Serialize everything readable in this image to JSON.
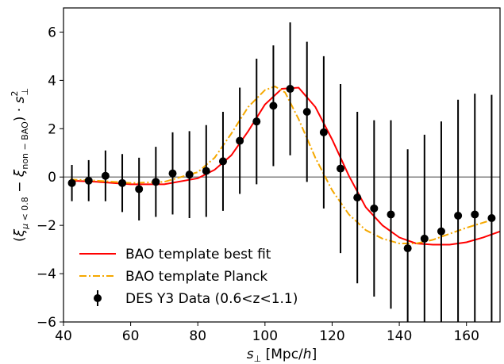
{
  "chart_data": {
    "type": "line",
    "title": "",
    "xlabel": "s_⊥ [Mpc/h]",
    "ylabel": "(ξ_{μ<0.8} − ξ_{non−BAO}) · s_⊥²",
    "xlim": [
      40,
      170
    ],
    "ylim": [
      -6,
      7
    ],
    "x_ticks": [
      40,
      60,
      80,
      100,
      120,
      140,
      160
    ],
    "y_ticks": [
      -6,
      -4,
      -2,
      0,
      2,
      4,
      6
    ],
    "grid": false,
    "zero_line": true,
    "legend_position": "lower-left",
    "series": [
      {
        "name": "BAO template best fit",
        "style": "solid",
        "color": "#ff0000",
        "x": [
          42,
          50,
          60,
          70,
          80,
          85,
          90,
          95,
          100,
          105,
          110,
          115,
          120,
          125,
          130,
          135,
          140,
          145,
          150,
          155,
          160,
          165,
          170
        ],
        "y": [
          -0.15,
          -0.2,
          -0.3,
          -0.3,
          -0.05,
          0.3,
          0.9,
          1.9,
          3.0,
          3.65,
          3.7,
          2.9,
          1.55,
          0.05,
          -1.25,
          -2.0,
          -2.5,
          -2.75,
          -2.8,
          -2.8,
          -2.7,
          -2.5,
          -2.25
        ]
      },
      {
        "name": "BAO template Planck",
        "style": "dashdot",
        "color": "#f5a800",
        "x": [
          42,
          50,
          60,
          70,
          80,
          85,
          90,
          95,
          100,
          103,
          106,
          110,
          115,
          120,
          125,
          130,
          135,
          140,
          145,
          150,
          155,
          160,
          167
        ],
        "y": [
          -0.1,
          -0.15,
          -0.25,
          -0.2,
          0.2,
          0.8,
          1.8,
          2.9,
          3.6,
          3.75,
          3.5,
          2.4,
          0.8,
          -0.55,
          -1.55,
          -2.2,
          -2.55,
          -2.75,
          -2.75,
          -2.6,
          -2.35,
          -2.1,
          -1.8
        ]
      }
    ],
    "data_points": {
      "name": "DES Y3 Data (0.6<z<1.1)",
      "color": "#000000",
      "x": [
        42.5,
        47.5,
        52.5,
        57.5,
        62.5,
        67.5,
        72.5,
        77.5,
        82.5,
        87.5,
        92.5,
        97.5,
        102.5,
        107.5,
        112.5,
        117.5,
        122.5,
        127.5,
        132.5,
        137.5,
        142.5,
        147.5,
        152.5,
        157.5,
        162.5,
        167.5
      ],
      "y": [
        -0.25,
        -0.15,
        0.05,
        -0.25,
        -0.5,
        -0.2,
        0.15,
        0.1,
        0.25,
        0.65,
        1.5,
        2.3,
        2.95,
        3.65,
        2.7,
        1.85,
        0.35,
        -0.85,
        -1.3,
        -1.55,
        -2.95,
        -2.55,
        -2.25,
        -1.6,
        -1.55,
        -1.7
      ],
      "err": [
        0.75,
        0.85,
        1.05,
        1.2,
        1.3,
        1.45,
        1.7,
        1.8,
        1.9,
        2.05,
        2.2,
        2.6,
        2.5,
        2.75,
        2.9,
        3.15,
        3.5,
        3.55,
        3.65,
        3.9,
        4.1,
        4.3,
        4.55,
        4.8,
        5.0,
        5.1
      ]
    }
  }
}
